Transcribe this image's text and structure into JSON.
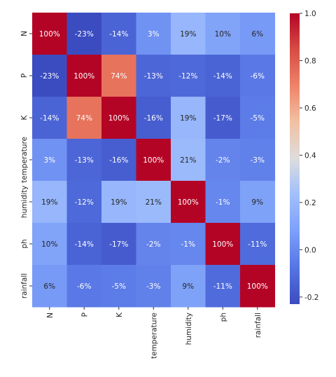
{
  "chart_data": {
    "type": "heatmap",
    "title": "",
    "rows": [
      "N",
      "P",
      "K",
      "temperature",
      "humidity",
      "ph",
      "rainfall"
    ],
    "columns": [
      "N",
      "P",
      "K",
      "temperature",
      "humidity",
      "ph",
      "rainfall"
    ],
    "values": [
      [
        1.0,
        -0.23,
        -0.14,
        0.03,
        0.19,
        0.1,
        0.06
      ],
      [
        -0.23,
        1.0,
        0.74,
        -0.13,
        -0.12,
        -0.14,
        -0.06
      ],
      [
        -0.14,
        0.74,
        1.0,
        -0.16,
        0.19,
        -0.17,
        -0.05
      ],
      [
        0.03,
        -0.13,
        -0.16,
        1.0,
        0.21,
        -0.02,
        -0.03
      ],
      [
        0.19,
        -0.12,
        0.19,
        0.21,
        1.0,
        -0.01,
        0.09
      ],
      [
        0.1,
        -0.14,
        -0.17,
        -0.02,
        -0.01,
        1.0,
        -0.11
      ],
      [
        0.06,
        -0.06,
        -0.05,
        -0.03,
        0.09,
        -0.11,
        1.0
      ]
    ],
    "annotations": [
      [
        "100%",
        "-23%",
        "-14%",
        "3%",
        "19%",
        "10%",
        "6%"
      ],
      [
        "-23%",
        "100%",
        "74%",
        "-13%",
        "-12%",
        "-14%",
        "-6%"
      ],
      [
        "-14%",
        "74%",
        "100%",
        "-16%",
        "19%",
        "-17%",
        "-5%"
      ],
      [
        "3%",
        "-13%",
        "-16%",
        "100%",
        "21%",
        "-2%",
        "-3%"
      ],
      [
        "19%",
        "-12%",
        "19%",
        "21%",
        "100%",
        "-1%",
        "9%"
      ],
      [
        "10%",
        "-14%",
        "-17%",
        "-2%",
        "-1%",
        "100%",
        "-11%"
      ],
      [
        "6%",
        "-6%",
        "-5%",
        "-3%",
        "9%",
        "-11%",
        "100%"
      ]
    ],
    "colormap": "coolwarm",
    "vmin": -0.23,
    "vmax": 1.0,
    "colorbar": {
      "ticks": [
        -0.2,
        0.0,
        0.2,
        0.4,
        0.6,
        0.8,
        1.0
      ],
      "tick_labels": [
        "-0.2",
        "0.0",
        "0.2",
        "0.4",
        "0.6",
        "0.8",
        "1.0"
      ]
    },
    "colors": {
      "low": "#3b4cc0",
      "mid": "#dddddd",
      "high": "#b40426"
    }
  }
}
